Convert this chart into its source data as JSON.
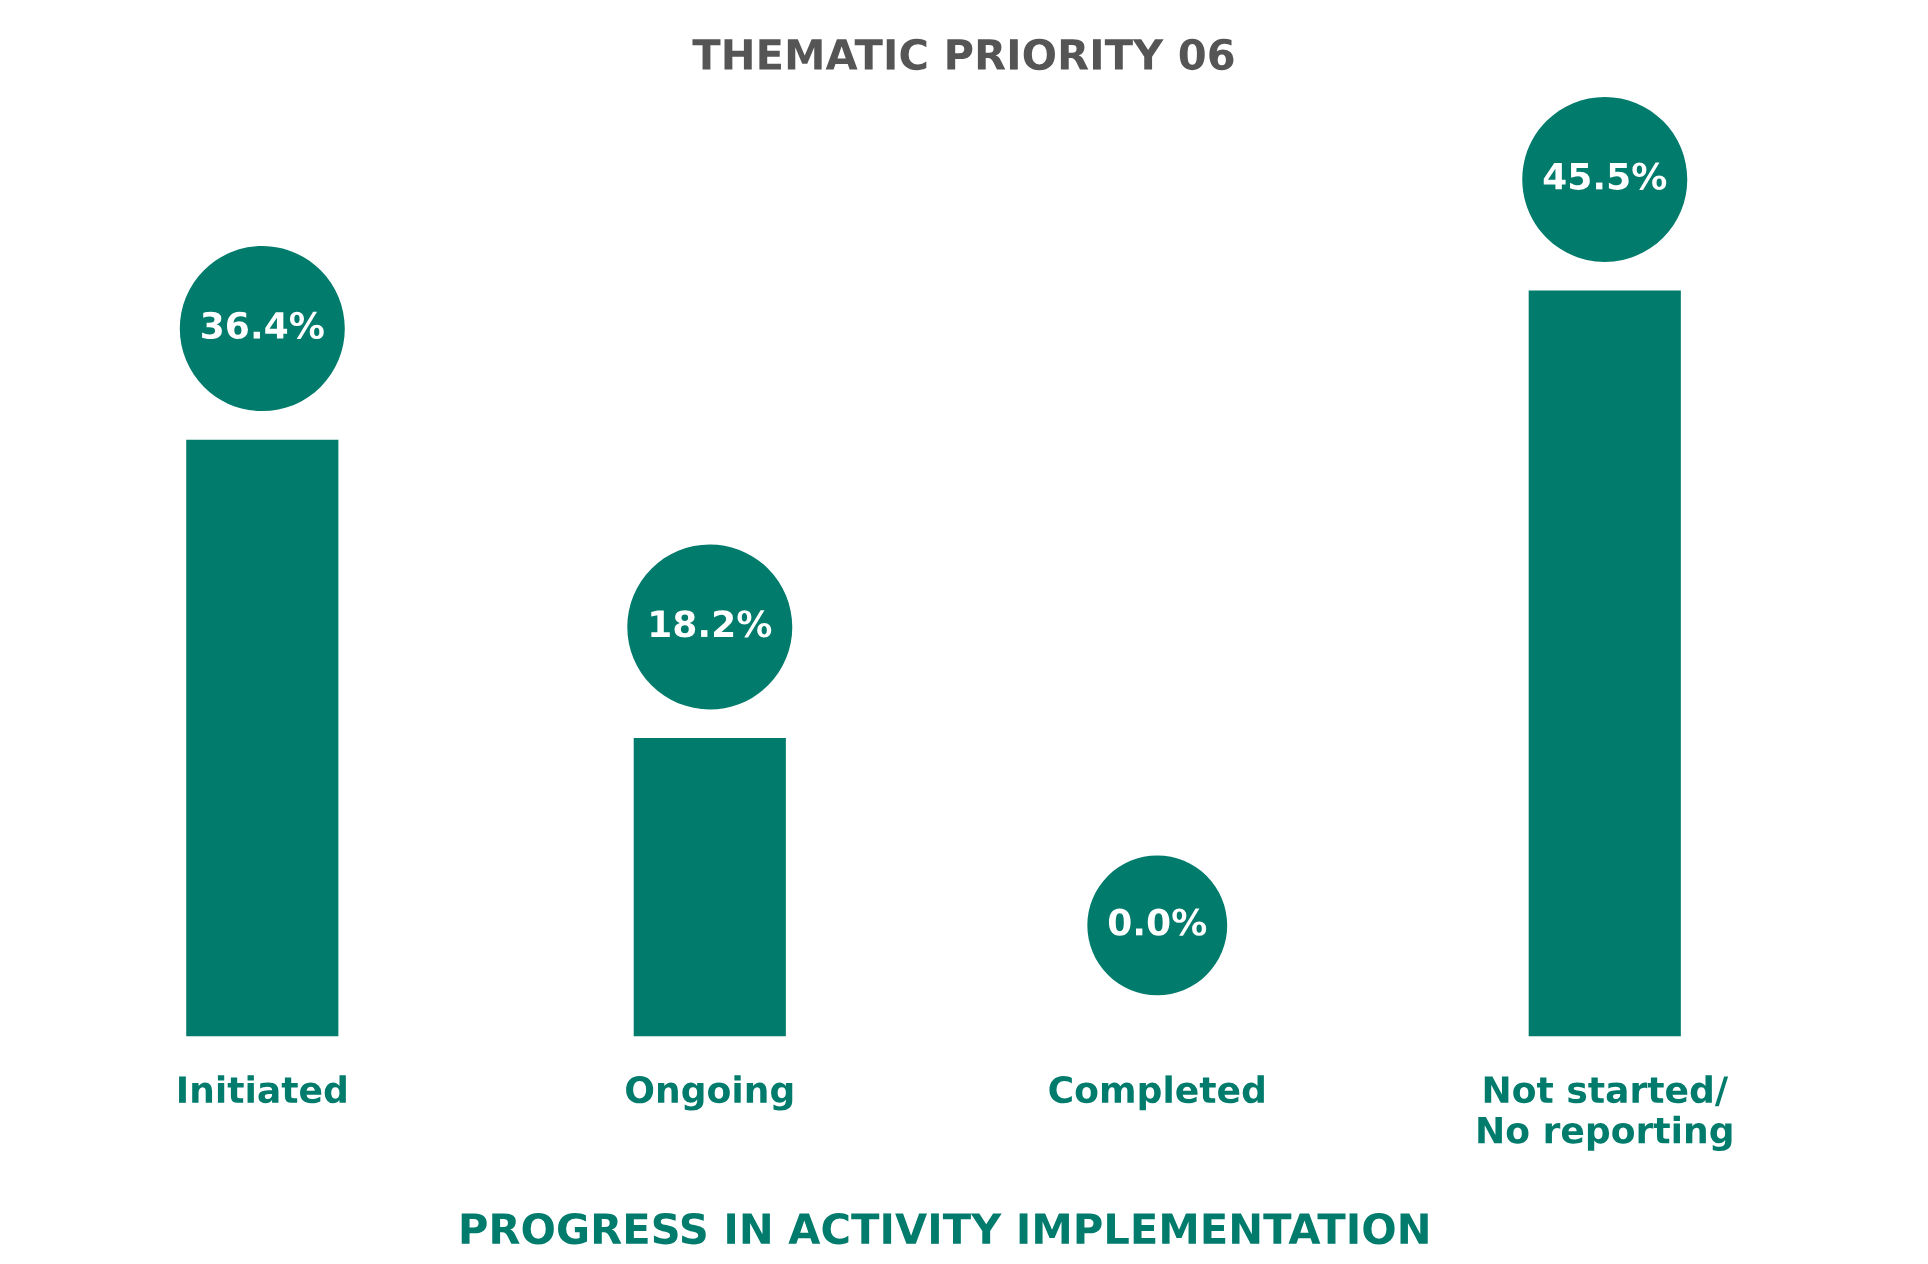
{
  "chart_data": {
    "type": "bar",
    "title": "THEMATIC PRIORITY 06",
    "xlabel": "PROGRESS IN ACTIVITY IMPLEMENTATION",
    "categories": [
      "Initiated",
      "Ongoing",
      "Completed",
      "Not started/\nNo reporting"
    ],
    "values": [
      36.4,
      18.2,
      0.0,
      45.5
    ],
    "color": "#007b6c",
    "data_labels": true,
    "value_labels": [
      "36.4%",
      "18.2%",
      "0.0%",
      "45.5%"
    ],
    "grid": false,
    "legend": false
  }
}
